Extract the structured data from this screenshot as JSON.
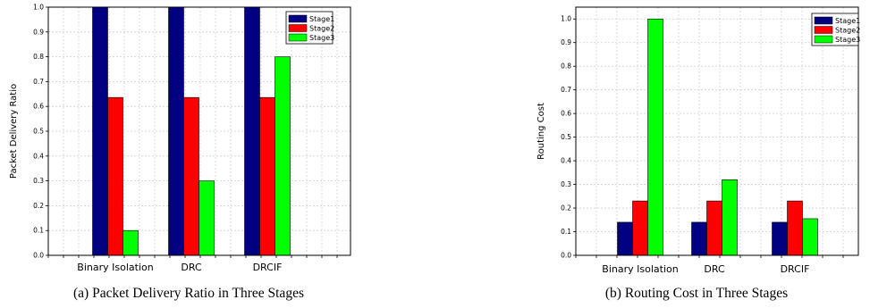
{
  "chart_data": [
    {
      "type": "bar",
      "title": "",
      "xlabel": "",
      "ylabel": "Packet Delivery Ratio",
      "categories": [
        "Binary Isolation",
        "DRC",
        "DRCIF"
      ],
      "series": [
        {
          "name": "Stage1",
          "color": "#000080",
          "values": [
            1.0,
            1.0,
            1.0
          ]
        },
        {
          "name": "Stage2",
          "color": "#ff0000",
          "values": [
            0.636,
            0.636,
            0.636
          ]
        },
        {
          "name": "Stage3",
          "color": "#00ff00",
          "values": [
            0.1,
            0.3,
            0.8
          ]
        }
      ],
      "ylim": [
        0,
        1.0
      ],
      "yticks": [
        "0.0",
        "0.1",
        "0.2",
        "0.3",
        "0.4",
        "0.5",
        "0.6",
        "0.7",
        "0.8",
        "0.9",
        "1.0"
      ],
      "grid": true,
      "legend": "top-right",
      "caption": "(a) Packet Delivery Ratio in Three Stages"
    },
    {
      "type": "bar",
      "title": "",
      "xlabel": "",
      "ylabel": "Routing Cost",
      "categories": [
        "Binary Isolation",
        "DRC",
        "DRCIF"
      ],
      "series": [
        {
          "name": "Stage1",
          "color": "#000080",
          "values": [
            0.14,
            0.14,
            0.14
          ]
        },
        {
          "name": "Stage2",
          "color": "#ff0000",
          "values": [
            0.23,
            0.23,
            0.23
          ]
        },
        {
          "name": "Stage3",
          "color": "#00ff00",
          "values": [
            1.0,
            0.32,
            0.155
          ]
        }
      ],
      "ylim": [
        0,
        1.05
      ],
      "yticks": [
        "0.0",
        "0.1",
        "0.2",
        "0.3",
        "0.4",
        "0.5",
        "0.6",
        "0.7",
        "0.8",
        "0.9",
        "1.0"
      ],
      "grid": true,
      "legend": "top-right",
      "caption": "(b) Routing Cost in Three Stages"
    }
  ]
}
